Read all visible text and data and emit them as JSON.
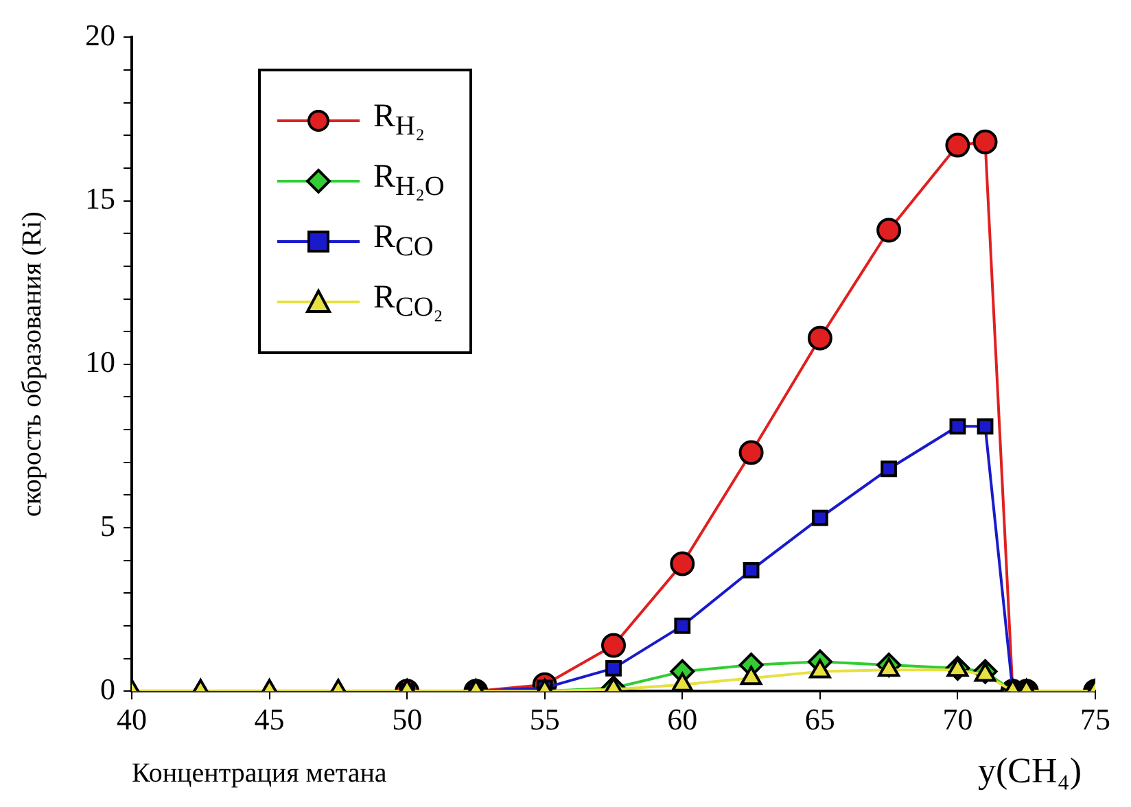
{
  "chart_data": {
    "type": "line",
    "ylabel": "скорость образования (Ri)",
    "xlabel": "Концентрация метана",
    "annotations": [
      "y(CH₄)"
    ],
    "x": [
      40,
      42.5,
      45,
      47.5,
      50,
      52.5,
      55,
      57.5,
      60,
      62.5,
      65,
      67.5,
      70,
      71,
      72,
      72.5,
      75
    ],
    "xlim": [
      40,
      75
    ],
    "xticks": [
      40,
      45,
      50,
      55,
      60,
      65,
      70,
      75
    ],
    "ylim": [
      0,
      20
    ],
    "yticks": [
      0,
      {
        "value": 1,
        "label": null
      },
      {
        "value": 2,
        "label": null
      },
      {
        "value": 3,
        "label": null
      },
      {
        "value": 4,
        "label": null
      },
      5,
      {
        "value": 6,
        "label": null
      },
      {
        "value": 7,
        "label": null
      },
      {
        "value": 8,
        "label": null
      },
      {
        "value": 9,
        "label": null
      },
      10,
      {
        "value": 11,
        "label": null
      },
      {
        "value": 12,
        "label": null
      },
      {
        "value": 13,
        "label": null
      },
      {
        "value": 14,
        "label": null
      },
      15,
      {
        "value": 16,
        "label": null
      },
      {
        "value": 17,
        "label": null
      },
      {
        "value": 18,
        "label": null
      },
      {
        "value": 19,
        "label": null
      },
      20
    ],
    "grid": false,
    "legend": "top left",
    "line_style": "solid",
    "series": [
      {
        "name": "R$_{H₂}$",
        "color": "#e02020",
        "marker": "circle",
        "values": [
          null,
          null,
          null,
          null,
          0,
          0,
          0.2,
          1.4,
          3.9,
          7.3,
          10.8,
          14.1,
          16.7,
          16.8,
          0,
          0,
          0
        ]
      },
      {
        "name": "R$_{H₂O}$",
        "color": "#33cc33",
        "marker": "diamond",
        "values": [
          null,
          null,
          null,
          null,
          null,
          0,
          0,
          0.1,
          0.6,
          0.8,
          0.9,
          0.8,
          0.7,
          0.6,
          0,
          0,
          0
        ]
      },
      {
        "name": "R$_{CO}$",
        "color": "#1a1acc",
        "marker": "square",
        "values": [
          null,
          null,
          null,
          null,
          0,
          0,
          0.1,
          0.7,
          2.0,
          3.7,
          5.3,
          6.8,
          8.1,
          8.1,
          0,
          0,
          0
        ]
      },
      {
        "name": "R$_{CO₂}$",
        "color": "#e8e040",
        "marker": "triangle",
        "values": [
          0,
          0,
          0,
          0,
          0,
          0,
          0,
          0.05,
          0.2,
          0.4,
          0.6,
          0.65,
          0.65,
          0.5,
          0,
          0,
          0
        ]
      }
    ]
  }
}
